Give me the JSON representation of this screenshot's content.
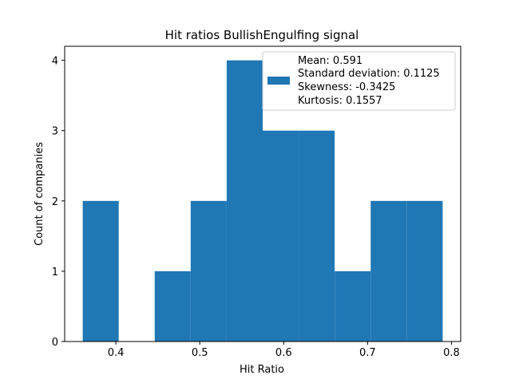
{
  "chart_data": {
    "type": "bar",
    "title": "Hit ratios BullishEngulfing signal",
    "xlabel": "Hit Ratio",
    "ylabel": "Count of companies",
    "xlim": [
      0.339,
      0.811
    ],
    "ylim": [
      0,
      4.2
    ],
    "x_ticks": [
      {
        "value": 0.4,
        "label": "0.4"
      },
      {
        "value": 0.5,
        "label": "0.5"
      },
      {
        "value": 0.6,
        "label": "0.6"
      },
      {
        "value": 0.7,
        "label": "0.7"
      },
      {
        "value": 0.8,
        "label": "0.8"
      }
    ],
    "y_ticks": [
      {
        "value": 0,
        "label": "0"
      },
      {
        "value": 1,
        "label": "1"
      },
      {
        "value": 2,
        "label": "2"
      },
      {
        "value": 3,
        "label": "3"
      },
      {
        "value": 4,
        "label": "4"
      }
    ],
    "bins": [
      {
        "x0": 0.3605,
        "x1": 0.4034,
        "count": 2
      },
      {
        "x0": 0.4034,
        "x1": 0.4463,
        "count": 0
      },
      {
        "x0": 0.4463,
        "x1": 0.4892,
        "count": 1
      },
      {
        "x0": 0.4892,
        "x1": 0.5321,
        "count": 2
      },
      {
        "x0": 0.5321,
        "x1": 0.575,
        "count": 4
      },
      {
        "x0": 0.575,
        "x1": 0.6179,
        "count": 3
      },
      {
        "x0": 0.6179,
        "x1": 0.6608,
        "count": 3
      },
      {
        "x0": 0.6608,
        "x1": 0.7037,
        "count": 1
      },
      {
        "x0": 0.7037,
        "x1": 0.7466,
        "count": 2
      },
      {
        "x0": 0.7466,
        "x1": 0.7895,
        "count": 2
      }
    ],
    "bar_color": "#1f77b4",
    "grid": false,
    "legend": {
      "placement": "upper right",
      "lines": [
        "Mean: 0.591",
        "Standard deviation: 0.1125",
        "Skewness: -0.3425",
        "Kurtosis: 0.1557"
      ]
    }
  }
}
